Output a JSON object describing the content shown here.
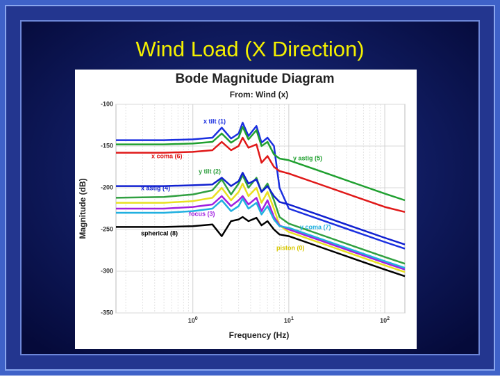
{
  "slide_title": "Wind Load (X Direction)",
  "chart_data": {
    "type": "line",
    "title": "Bode Magnitude Diagram",
    "subtitle": "From: Wind (x)",
    "x_label": "Frequency (Hz)",
    "y_label": "Magnitude (dB)",
    "xscale": "log",
    "grid": true,
    "xlim": [
      0.158,
      162
    ],
    "ylim": [
      -350,
      -100
    ],
    "xticks": [
      {
        "value": 1,
        "label": "10",
        "exponent": "0"
      },
      {
        "value": 10,
        "label": "10",
        "exponent": "1"
      },
      {
        "value": 100,
        "label": "10",
        "exponent": "2"
      }
    ],
    "yticks": [
      -350,
      -300,
      -250,
      -200,
      -150,
      -100
    ],
    "x": [
      0.158,
      0.5,
      1,
      1.6,
      2,
      2.5,
      3,
      3.3,
      3.8,
      4.6,
      5.2,
      6,
      7,
      8,
      10,
      20,
      50,
      100,
      162
    ],
    "series": [
      {
        "name": "x tilt (1)",
        "color": "#1a2fe0",
        "values": [
          -143,
          -143,
          -142,
          -140,
          -128,
          -141,
          -135,
          -122,
          -138,
          -126,
          -146,
          -140,
          -150,
          -200,
          -225,
          -237,
          -253,
          -265,
          -273
        ]
      },
      {
        "name": "x coma (6)",
        "color": "#e01818",
        "values": [
          -158,
          -158,
          -157,
          -155,
          -145,
          -155,
          -150,
          -140,
          -152,
          -148,
          -170,
          -162,
          -175,
          -180,
          -183,
          -195,
          -211,
          -223,
          -229
        ]
      },
      {
        "name": "y astig (5)",
        "color": "#20a030",
        "values": [
          -148,
          -148,
          -147,
          -145,
          -135,
          -146,
          -140,
          -127,
          -142,
          -131,
          -150,
          -145,
          -160,
          -165,
          -167,
          -179,
          -195,
          -207,
          -215
        ]
      },
      {
        "name": "y tilt (2)",
        "color": "#30a040",
        "values": [
          -212,
          -211,
          -208,
          -203,
          -190,
          -208,
          -195,
          -185,
          -200,
          -188,
          -205,
          -195,
          -215,
          -235,
          -243,
          -255,
          -271,
          -283,
          -291
        ]
      },
      {
        "name": "x astig (4)",
        "color": "#1020d0",
        "values": [
          -198,
          -198,
          -197,
          -196,
          -188,
          -198,
          -192,
          -182,
          -195,
          -190,
          -205,
          -198,
          -210,
          -217,
          -220,
          -232,
          -248,
          -260,
          -268
        ]
      },
      {
        "name": "piston (0)",
        "color": "#e8e020",
        "values": [
          -218,
          -218,
          -216,
          -212,
          -200,
          -215,
          -205,
          -195,
          -210,
          -200,
          -218,
          -205,
          -225,
          -245,
          -253,
          -265,
          -281,
          -293,
          -301
        ]
      },
      {
        "name": "focus (3)",
        "color": "#a020e0",
        "values": [
          -225,
          -225,
          -223,
          -220,
          -210,
          -222,
          -215,
          -210,
          -220,
          -212,
          -228,
          -215,
          -235,
          -245,
          -250,
          -262,
          -278,
          -290,
          -298
        ]
      },
      {
        "name": "y coma (7)",
        "color": "#20b0e0",
        "values": [
          -230,
          -230,
          -228,
          -225,
          -215,
          -228,
          -222,
          -213,
          -225,
          -218,
          -232,
          -222,
          -238,
          -246,
          -248,
          -260,
          -276,
          -288,
          -296
        ]
      },
      {
        "name": "spherical (8)",
        "color": "#000000",
        "values": [
          -247,
          -247,
          -246,
          -244,
          -258,
          -240,
          -238,
          -235,
          -240,
          -236,
          -245,
          -240,
          -250,
          -256,
          -258,
          -270,
          -286,
          -298,
          -306
        ]
      }
    ]
  }
}
